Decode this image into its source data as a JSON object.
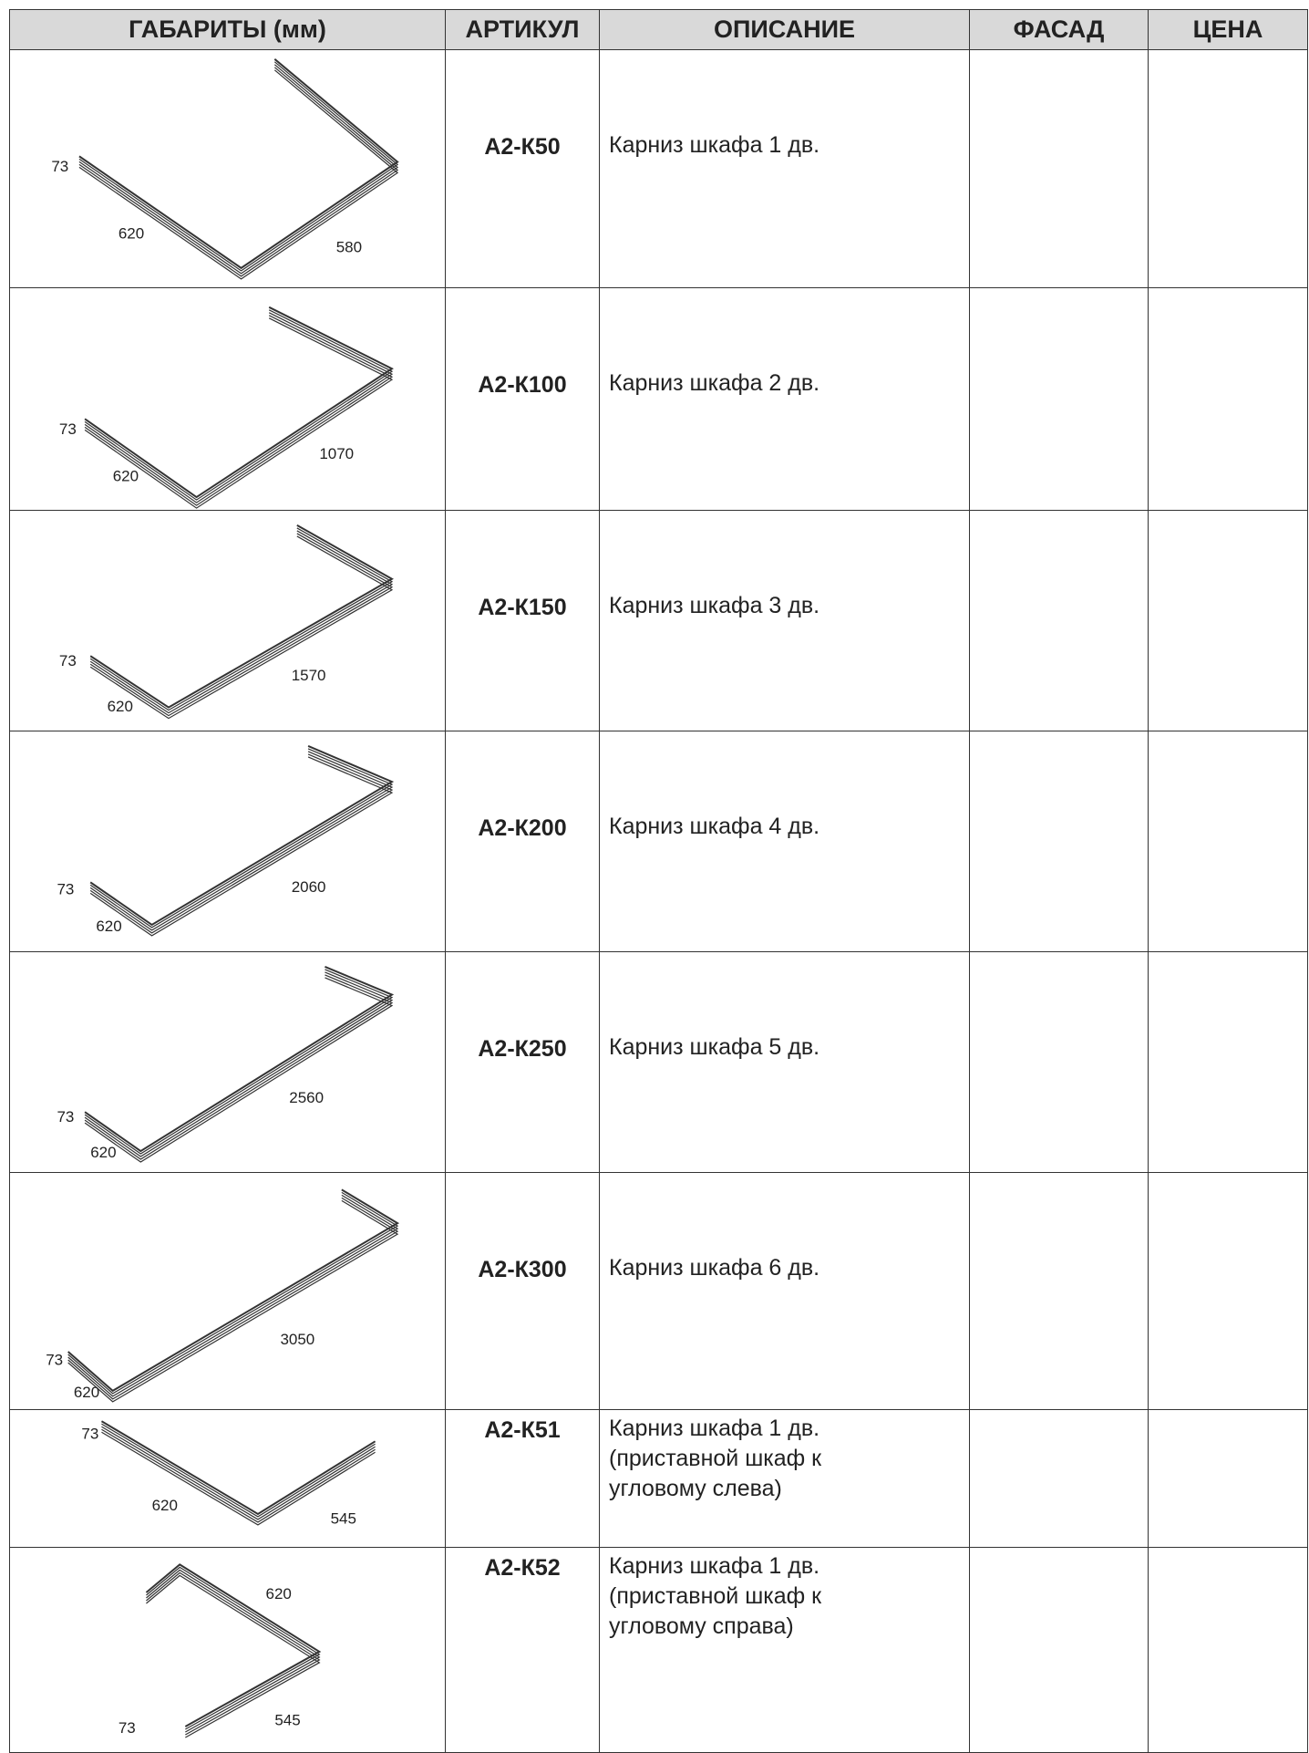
{
  "table": {
    "header": [
      "ГАБАРИТЫ (мм)",
      "АРТИКУЛ",
      "ОПИСАНИЕ",
      "ФАСАД",
      "ЦЕНА"
    ],
    "rows": [
      {
        "dims": {
          "height": "73",
          "depth": "620",
          "width": "580"
        },
        "article": "А2-К50",
        "description": "Карниз шкафа 1 дв."
      },
      {
        "dims": {
          "height": "73",
          "depth": "620",
          "width": "1070"
        },
        "article": "А2-К100",
        "description": "Карниз шкафа 2 дв."
      },
      {
        "dims": {
          "height": "73",
          "depth": "620",
          "width": "1570"
        },
        "article": "А2-К150",
        "description": "Карниз шкафа 3 дв."
      },
      {
        "dims": {
          "height": "73",
          "depth": "620",
          "width": "2060"
        },
        "article": "А2-К200",
        "description": "Карниз шкафа 4 дв."
      },
      {
        "dims": {
          "height": "73",
          "depth": "620",
          "width": "2560"
        },
        "article": "А2-К250",
        "description": "Карниз шкафа 5 дв."
      },
      {
        "dims": {
          "height": "73",
          "depth": "620",
          "width": "3050"
        },
        "article": "А2-К300",
        "description": "Карниз шкафа 6 дв."
      },
      {
        "dims": {
          "height": "73",
          "depth": "620",
          "width": "545"
        },
        "article": "А2-К51",
        "description": "Карниз шкафа 1 дв.\n(приставной шкаф к\nугловому слева)"
      },
      {
        "dims": {
          "height": "73",
          "depth": "620",
          "width": "545"
        },
        "article": "А2-К52",
        "description": "Карниз шкафа 1 дв.\n(приставной шкаф к\nугловому справа)"
      }
    ]
  }
}
